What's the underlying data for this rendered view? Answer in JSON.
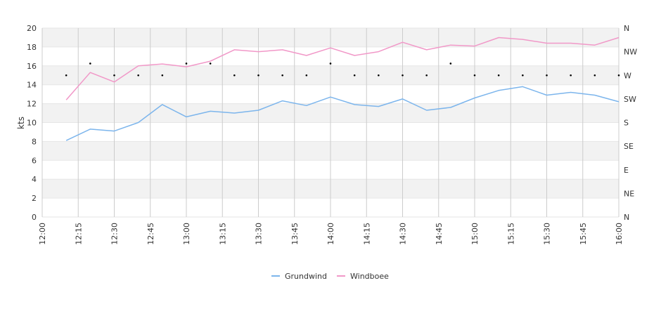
{
  "chart_data": {
    "type": "line",
    "ylabel": "kts",
    "ylim": [
      0,
      20
    ],
    "yticks": [
      "0",
      "2",
      "4",
      "6",
      "8",
      "10",
      "12",
      "14",
      "16",
      "18",
      "20"
    ],
    "x_start": "12:00",
    "x_end": "16:00",
    "xticks": [
      "12:00",
      "12:15",
      "12:30",
      "12:45",
      "13:00",
      "13:15",
      "13:30",
      "13:45",
      "14:00",
      "14:15",
      "14:30",
      "14:45",
      "15:00",
      "15:15",
      "15:30",
      "15:45",
      "16:00"
    ],
    "x": [
      "12:10",
      "12:20",
      "12:30",
      "12:40",
      "12:50",
      "13:00",
      "13:10",
      "13:20",
      "13:30",
      "13:40",
      "13:50",
      "14:00",
      "14:10",
      "14:20",
      "14:30",
      "14:40",
      "14:50",
      "15:00",
      "15:10",
      "15:20",
      "15:30",
      "15:40",
      "15:50",
      "16:00"
    ],
    "series": [
      {
        "name": "Grundwind",
        "color": "#7cb5ec",
        "values": [
          8.1,
          9.3,
          9.1,
          10.0,
          11.9,
          10.6,
          11.2,
          11.0,
          11.3,
          12.3,
          11.8,
          12.7,
          11.9,
          11.7,
          12.5,
          11.3,
          11.6,
          12.6,
          13.4,
          13.8,
          12.9,
          13.2,
          12.9,
          12.2
        ]
      },
      {
        "name": "Windboee",
        "color": "#f198c8",
        "values": [
          12.4,
          15.3,
          14.3,
          16.0,
          16.2,
          15.9,
          16.5,
          17.7,
          17.5,
          17.7,
          17.1,
          17.9,
          17.1,
          17.5,
          18.5,
          17.7,
          18.2,
          18.1,
          19.0,
          18.8,
          18.4,
          18.4,
          18.2,
          19.0
        ]
      }
    ],
    "direction_axis": {
      "labels": [
        "N",
        "NE",
        "E",
        "SE",
        "S",
        "SW",
        "W",
        "NW",
        "N"
      ],
      "range": [
        0,
        360
      ]
    },
    "direction_values": [
      270,
      292.5,
      270,
      270,
      270,
      292.5,
      292.5,
      270,
      270,
      270,
      270,
      292.5,
      270,
      270,
      270,
      270,
      292.5,
      270,
      270,
      270,
      270,
      270,
      270,
      270
    ],
    "direction_color": "#000000",
    "grid": true,
    "legend_position": "bottom-center"
  }
}
